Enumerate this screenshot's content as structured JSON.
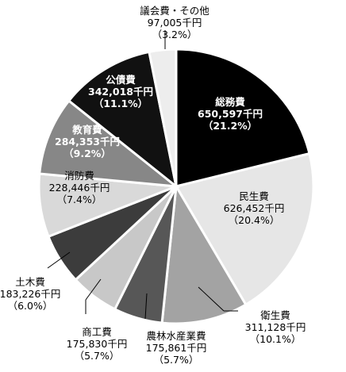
{
  "chart_data": {
    "type": "pie",
    "title": "",
    "unit": "千円",
    "slices": [
      {
        "name": "総務費",
        "value": 650597,
        "value_label": "650,597千円",
        "percent_label": "（21.2%）",
        "color": "#000000",
        "text_color": "#ffffff"
      },
      {
        "name": "民生費",
        "value": 626452,
        "value_label": "626,452千円",
        "percent_label": "（20.4%）",
        "color": "#e6e6e6",
        "text_color": "#000000"
      },
      {
        "name": "衛生費",
        "value": 311128,
        "value_label": "311,128千円",
        "percent_label": "（10.1%）",
        "color": "#a3a3a3",
        "text_color": "#000000"
      },
      {
        "name": "農林水産業費",
        "value": 175861,
        "value_label": "175,861千円",
        "percent_label": "（5.7%）",
        "color": "#575757",
        "text_color": "#000000"
      },
      {
        "name": "商工費",
        "value": 175830,
        "value_label": "175,830千円",
        "percent_label": "（5.7%）",
        "color": "#c8c8c8",
        "text_color": "#000000"
      },
      {
        "name": "土木費",
        "value": 183226,
        "value_label": "183,226千円",
        "percent_label": "（6.0%）",
        "color": "#3c3c3c",
        "text_color": "#000000"
      },
      {
        "name": "消防費",
        "value": 228446,
        "value_label": "228,446千円",
        "percent_label": "（7.4%）",
        "color": "#d9d9d9",
        "text_color": "#000000"
      },
      {
        "name": "教育費",
        "value": 284353,
        "value_label": "284,353千円",
        "percent_label": "（9.2%）",
        "color": "#878787",
        "text_color": "#ffffff"
      },
      {
        "name": "公債費",
        "value": 342018,
        "value_label": "342,018千円",
        "percent_label": "（11.1%）",
        "color": "#111111",
        "text_color": "#ffffff"
      },
      {
        "name": "議会費・その他",
        "value": 97005,
        "value_label": "97,005千円",
        "percent_label": "（3.2%）",
        "color": "#ededed",
        "text_color": "#000000"
      }
    ]
  }
}
